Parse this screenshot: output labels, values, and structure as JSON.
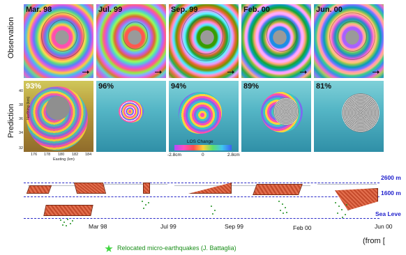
{
  "row_labels": {
    "observation": "Observation",
    "prediction": "Prediction"
  },
  "observation_panels": [
    "Mar. 98",
    "Jul. 99",
    "Sep. 99",
    "Feb. 00",
    "Jun. 00"
  ],
  "prediction_panels": [
    "93%",
    "96%",
    "94%",
    "89%",
    "81%"
  ],
  "axes": {
    "ylabel": "Northing (km)",
    "xlabel": "Easting (km)",
    "yticks": [
      "40",
      "38",
      "36",
      "34",
      "32"
    ],
    "xticks": [
      "176",
      "178",
      "180",
      "182",
      "184"
    ]
  },
  "colorbar": {
    "title": "LOS Change",
    "min": "-2.8cm",
    "mid": "0",
    "max": "2.8cm"
  },
  "depth_labels": [
    "2600 m",
    "1600 m",
    "Sea Leve"
  ],
  "month_labels": [
    "Mar 98",
    "Jul 99",
    "Sep 99",
    "Feb 00",
    "Jun 00"
  ],
  "legend": {
    "text": "Relocated micro-earthquakes (J. Battaglia)",
    "icon": "star-icon",
    "color": "#3fd63f"
  },
  "source": "(from ["
}
